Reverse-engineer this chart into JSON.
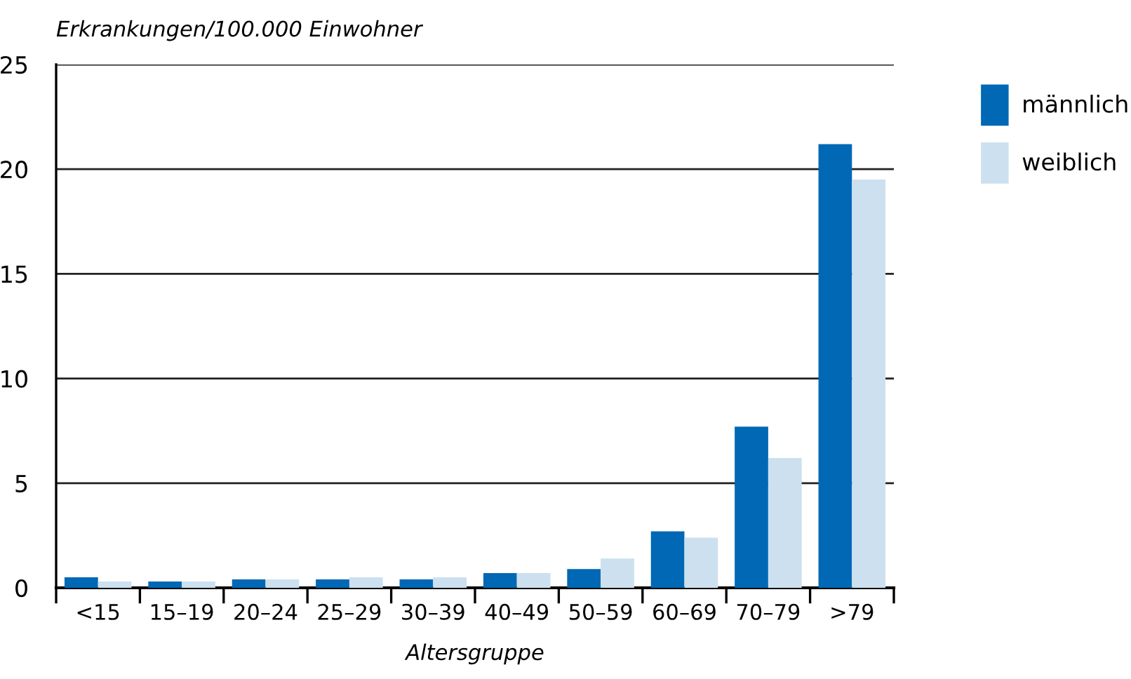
{
  "chart_data": {
    "type": "bar",
    "ylabel": "Erkrankungen/100.000 Einwohner",
    "xlabel": "Altersgruppe",
    "categories": [
      "<15",
      "15–19",
      "20–24",
      "25–29",
      "30–39",
      "40–49",
      "50–59",
      "60–69",
      "70–79",
      ">79"
    ],
    "series": [
      {
        "name": "männlich",
        "color": "#0068b4",
        "values": [
          0.5,
          0.3,
          0.4,
          0.4,
          0.4,
          0.7,
          0.9,
          2.7,
          7.7,
          21.2
        ]
      },
      {
        "name": "weiblich",
        "color": "#cce0ef",
        "values": [
          0.3,
          0.3,
          0.4,
          0.5,
          0.5,
          0.7,
          1.4,
          2.4,
          6.2,
          19.5
        ]
      }
    ],
    "ylim": [
      0,
      25
    ],
    "yticks": [
      0,
      5,
      10,
      15,
      20,
      25
    ],
    "grid": "y",
    "legend": "top right"
  }
}
